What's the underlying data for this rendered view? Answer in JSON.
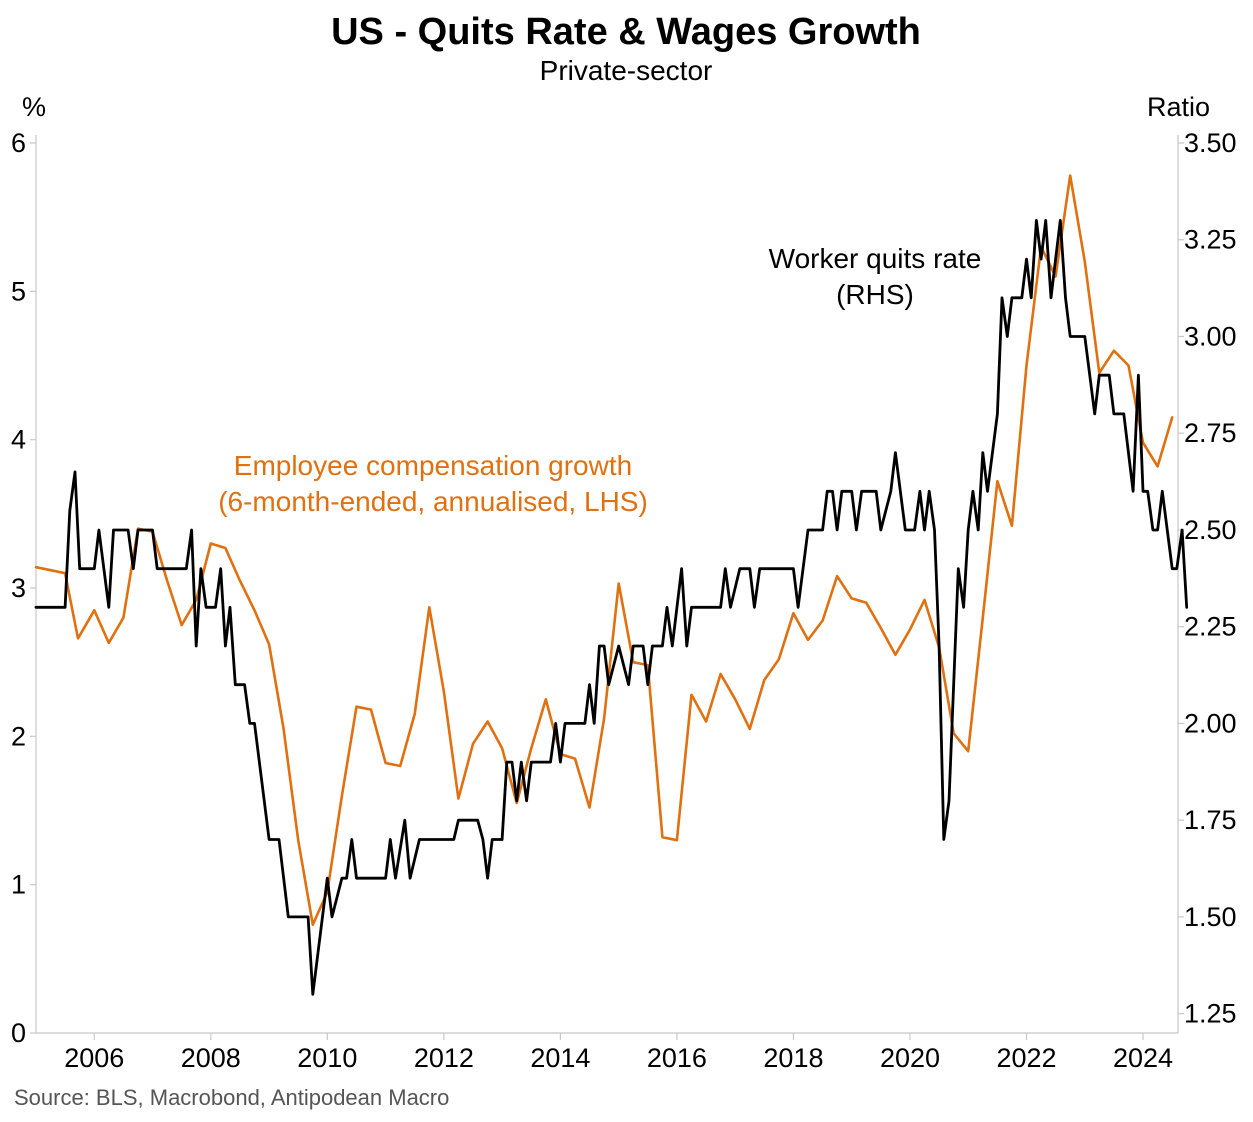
{
  "chart_data": {
    "type": "line",
    "title": "US - Quits Rate & Wages Growth",
    "subtitle": "Private-sector",
    "y_left_label": "%",
    "y_right_label": "Ratio",
    "source": "Source: BLS, Macrobond, Antipodean Macro",
    "xlim": [
      2005.0,
      2024.6
    ],
    "y_left_lim": [
      0,
      6
    ],
    "y_right_lim": [
      1.2,
      3.5
    ],
    "x_ticks": [
      2006,
      2008,
      2010,
      2012,
      2014,
      2016,
      2018,
      2020,
      2022,
      2024
    ],
    "y_left_ticks": [
      0,
      1,
      2,
      3,
      4,
      5,
      6
    ],
    "y_right_ticks": [
      1.25,
      1.5,
      1.75,
      2.0,
      2.25,
      2.5,
      2.75,
      3.0,
      3.25,
      3.5
    ],
    "y_right_tick_labels": [
      "1.25",
      "1.50",
      "1.75",
      "2.00",
      "2.25",
      "2.50",
      "2.75",
      "3.00",
      "3.25",
      "3.50"
    ],
    "colors": {
      "compensation": "#E07010",
      "quits": "#000000",
      "axis": "#c8c8c8"
    },
    "series": [
      {
        "name": "Employee compensation growth (6-month-ended, annualised, LHS)",
        "axis": "left",
        "color": "#E07010",
        "points": [
          [
            2005.0,
            3.14
          ],
          [
            2005.25,
            3.12
          ],
          [
            2005.5,
            3.1
          ],
          [
            2005.72,
            2.66
          ],
          [
            2006.0,
            2.85
          ],
          [
            2006.25,
            2.63
          ],
          [
            2006.5,
            2.8
          ],
          [
            2006.75,
            3.4
          ],
          [
            2007.0,
            3.38
          ],
          [
            2007.25,
            3.05
          ],
          [
            2007.5,
            2.75
          ],
          [
            2007.75,
            2.92
          ],
          [
            2008.0,
            3.3
          ],
          [
            2008.25,
            3.27
          ],
          [
            2008.5,
            3.05
          ],
          [
            2008.75,
            2.85
          ],
          [
            2009.0,
            2.62
          ],
          [
            2009.25,
            2.05
          ],
          [
            2009.5,
            1.3
          ],
          [
            2009.75,
            0.73
          ],
          [
            2010.0,
            0.95
          ],
          [
            2010.25,
            1.6
          ],
          [
            2010.5,
            2.2
          ],
          [
            2010.75,
            2.18
          ],
          [
            2011.0,
            1.82
          ],
          [
            2011.25,
            1.8
          ],
          [
            2011.5,
            2.15
          ],
          [
            2011.75,
            2.87
          ],
          [
            2012.0,
            2.3
          ],
          [
            2012.25,
            1.58
          ],
          [
            2012.5,
            1.95
          ],
          [
            2012.75,
            2.1
          ],
          [
            2013.0,
            1.92
          ],
          [
            2013.25,
            1.55
          ],
          [
            2013.5,
            1.92
          ],
          [
            2013.75,
            2.25
          ],
          [
            2014.0,
            1.88
          ],
          [
            2014.25,
            1.85
          ],
          [
            2014.5,
            1.52
          ],
          [
            2014.75,
            2.12
          ],
          [
            2015.0,
            3.03
          ],
          [
            2015.25,
            2.5
          ],
          [
            2015.5,
            2.48
          ],
          [
            2015.75,
            1.32
          ],
          [
            2016.0,
            1.3
          ],
          [
            2016.25,
            2.28
          ],
          [
            2016.5,
            2.1
          ],
          [
            2016.75,
            2.42
          ],
          [
            2017.0,
            2.25
          ],
          [
            2017.25,
            2.05
          ],
          [
            2017.5,
            2.38
          ],
          [
            2017.75,
            2.52
          ],
          [
            2018.0,
            2.83
          ],
          [
            2018.25,
            2.65
          ],
          [
            2018.5,
            2.78
          ],
          [
            2018.75,
            3.08
          ],
          [
            2019.0,
            2.93
          ],
          [
            2019.25,
            2.9
          ],
          [
            2019.5,
            2.73
          ],
          [
            2019.75,
            2.55
          ],
          [
            2020.0,
            2.72
          ],
          [
            2020.25,
            2.92
          ],
          [
            2020.5,
            2.6
          ],
          [
            2020.75,
            2.02
          ],
          [
            2021.0,
            1.9
          ],
          [
            2021.25,
            2.8
          ],
          [
            2021.5,
            3.72
          ],
          [
            2021.75,
            3.42
          ],
          [
            2022.0,
            4.5
          ],
          [
            2022.25,
            5.3
          ],
          [
            2022.5,
            5.1
          ],
          [
            2022.75,
            5.78
          ],
          [
            2023.0,
            5.2
          ],
          [
            2023.25,
            4.45
          ],
          [
            2023.5,
            4.6
          ],
          [
            2023.75,
            4.5
          ],
          [
            2024.0,
            3.98
          ],
          [
            2024.25,
            3.82
          ],
          [
            2024.5,
            4.15
          ]
        ]
      },
      {
        "name": "Worker quits rate (RHS)",
        "axis": "right",
        "color": "#000000",
        "points": [
          [
            2005.0,
            2.3
          ],
          [
            2005.5,
            2.3
          ],
          [
            2005.58,
            2.55
          ],
          [
            2005.67,
            2.65
          ],
          [
            2005.75,
            2.4
          ],
          [
            2006.0,
            2.4
          ],
          [
            2006.08,
            2.5
          ],
          [
            2006.25,
            2.3
          ],
          [
            2006.33,
            2.5
          ],
          [
            2006.58,
            2.5
          ],
          [
            2006.67,
            2.4
          ],
          [
            2006.75,
            2.5
          ],
          [
            2007.0,
            2.5
          ],
          [
            2007.08,
            2.4
          ],
          [
            2007.58,
            2.4
          ],
          [
            2007.67,
            2.5
          ],
          [
            2007.75,
            2.2
          ],
          [
            2007.83,
            2.4
          ],
          [
            2007.92,
            2.3
          ],
          [
            2008.08,
            2.3
          ],
          [
            2008.17,
            2.4
          ],
          [
            2008.25,
            2.2
          ],
          [
            2008.33,
            2.3
          ],
          [
            2008.42,
            2.1
          ],
          [
            2008.58,
            2.1
          ],
          [
            2008.67,
            2.0
          ],
          [
            2008.75,
            2.0
          ],
          [
            2009.0,
            1.7
          ],
          [
            2009.17,
            1.7
          ],
          [
            2009.33,
            1.5
          ],
          [
            2009.5,
            1.5
          ],
          [
            2009.67,
            1.5
          ],
          [
            2009.75,
            1.3
          ],
          [
            2010.0,
            1.6
          ],
          [
            2010.08,
            1.5
          ],
          [
            2010.25,
            1.6
          ],
          [
            2010.33,
            1.6
          ],
          [
            2010.42,
            1.7
          ],
          [
            2010.5,
            1.6
          ],
          [
            2011.0,
            1.6
          ],
          [
            2011.08,
            1.7
          ],
          [
            2011.17,
            1.6
          ],
          [
            2011.33,
            1.75
          ],
          [
            2011.42,
            1.6
          ],
          [
            2011.58,
            1.7
          ],
          [
            2012.17,
            1.7
          ],
          [
            2012.25,
            1.75
          ],
          [
            2012.58,
            1.75
          ],
          [
            2012.67,
            1.7
          ],
          [
            2012.75,
            1.6
          ],
          [
            2012.83,
            1.7
          ],
          [
            2013.0,
            1.7
          ],
          [
            2013.08,
            1.9
          ],
          [
            2013.17,
            1.9
          ],
          [
            2013.25,
            1.8
          ],
          [
            2013.33,
            1.9
          ],
          [
            2013.42,
            1.8
          ],
          [
            2013.5,
            1.9
          ],
          [
            2013.83,
            1.9
          ],
          [
            2013.92,
            2.0
          ],
          [
            2014.0,
            1.9
          ],
          [
            2014.08,
            2.0
          ],
          [
            2014.42,
            2.0
          ],
          [
            2014.5,
            2.1
          ],
          [
            2014.58,
            2.0
          ],
          [
            2014.67,
            2.2
          ],
          [
            2014.75,
            2.2
          ],
          [
            2014.83,
            2.1
          ],
          [
            2015.0,
            2.2
          ],
          [
            2015.17,
            2.1
          ],
          [
            2015.25,
            2.2
          ],
          [
            2015.42,
            2.2
          ],
          [
            2015.5,
            2.1
          ],
          [
            2015.58,
            2.2
          ],
          [
            2015.75,
            2.2
          ],
          [
            2015.83,
            2.3
          ],
          [
            2015.92,
            2.2
          ],
          [
            2016.08,
            2.4
          ],
          [
            2016.17,
            2.2
          ],
          [
            2016.25,
            2.3
          ],
          [
            2016.75,
            2.3
          ],
          [
            2016.83,
            2.4
          ],
          [
            2016.92,
            2.3
          ],
          [
            2017.08,
            2.4
          ],
          [
            2017.25,
            2.4
          ],
          [
            2017.33,
            2.3
          ],
          [
            2017.42,
            2.4
          ],
          [
            2018.0,
            2.4
          ],
          [
            2018.08,
            2.3
          ],
          [
            2018.25,
            2.5
          ],
          [
            2018.5,
            2.5
          ],
          [
            2018.58,
            2.6
          ],
          [
            2018.67,
            2.6
          ],
          [
            2018.75,
            2.5
          ],
          [
            2018.83,
            2.6
          ],
          [
            2019.0,
            2.6
          ],
          [
            2019.08,
            2.5
          ],
          [
            2019.17,
            2.6
          ],
          [
            2019.42,
            2.6
          ],
          [
            2019.5,
            2.5
          ],
          [
            2019.67,
            2.6
          ],
          [
            2019.75,
            2.7
          ],
          [
            2019.92,
            2.5
          ],
          [
            2020.08,
            2.5
          ],
          [
            2020.17,
            2.6
          ],
          [
            2020.25,
            2.5
          ],
          [
            2020.33,
            2.6
          ],
          [
            2020.42,
            2.5
          ],
          [
            2020.5,
            2.2
          ],
          [
            2020.58,
            1.7
          ],
          [
            2020.67,
            1.8
          ],
          [
            2020.83,
            2.4
          ],
          [
            2020.92,
            2.3
          ],
          [
            2021.0,
            2.5
          ],
          [
            2021.08,
            2.6
          ],
          [
            2021.17,
            2.5
          ],
          [
            2021.25,
            2.7
          ],
          [
            2021.33,
            2.6
          ],
          [
            2021.5,
            2.8
          ],
          [
            2021.58,
            3.1
          ],
          [
            2021.67,
            3.0
          ],
          [
            2021.75,
            3.1
          ],
          [
            2021.92,
            3.1
          ],
          [
            2022.0,
            3.2
          ],
          [
            2022.08,
            3.1
          ],
          [
            2022.17,
            3.3
          ],
          [
            2022.25,
            3.2
          ],
          [
            2022.33,
            3.3
          ],
          [
            2022.42,
            3.1
          ],
          [
            2022.5,
            3.2
          ],
          [
            2022.58,
            3.3
          ],
          [
            2022.67,
            3.1
          ],
          [
            2022.75,
            3.0
          ],
          [
            2023.0,
            3.0
          ],
          [
            2023.17,
            2.8
          ],
          [
            2023.25,
            2.9
          ],
          [
            2023.42,
            2.9
          ],
          [
            2023.5,
            2.8
          ],
          [
            2023.67,
            2.8
          ],
          [
            2023.83,
            2.6
          ],
          [
            2023.92,
            2.9
          ],
          [
            2024.0,
            2.6
          ],
          [
            2024.08,
            2.6
          ],
          [
            2024.17,
            2.5
          ],
          [
            2024.25,
            2.5
          ],
          [
            2024.33,
            2.6
          ],
          [
            2024.5,
            2.4
          ],
          [
            2024.58,
            2.4
          ],
          [
            2024.67,
            2.5
          ],
          [
            2024.75,
            2.3
          ]
        ]
      }
    ],
    "annotations": {
      "compensation_line1": "Employee compensation growth",
      "compensation_line2": "(6-month-ended, annualised, LHS)",
      "quits_line1": "Worker quits rate",
      "quits_line2": "(RHS)"
    }
  }
}
